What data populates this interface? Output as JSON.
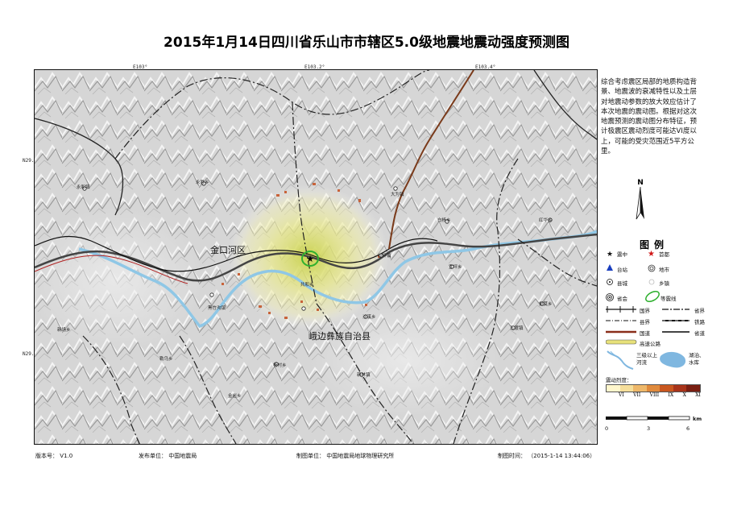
{
  "title": "2015年1月14日四川省乐山市市辖区5.0级地震地震动强度预测图",
  "grid": {
    "longitudes": [
      "E103°",
      "E103.2°",
      "E103.4°"
    ],
    "latitudes": [
      "N29.4°",
      "N29.2°"
    ]
  },
  "places": [
    {
      "name": "金口河区",
      "big": true
    },
    {
      "name": "峨边彝族自治县",
      "big": true
    },
    {
      "name": "永和镇"
    },
    {
      "name": "永胜乡"
    },
    {
      "name": "大为镇"
    },
    {
      "name": "沙坪镇"
    },
    {
      "name": "共和乡"
    },
    {
      "name": "沙溪乡"
    },
    {
      "name": "宜坪乡"
    },
    {
      "name": "红华乡"
    },
    {
      "name": "黑竹沟镇"
    },
    {
      "name": "杨村乡"
    },
    {
      "name": "新林镇"
    },
    {
      "name": "金岩乡"
    },
    {
      "name": "勒乌乡"
    },
    {
      "name": "五渡镇"
    },
    {
      "name": "新场乡"
    },
    {
      "name": "觉莫乡"
    },
    {
      "name": "白杨乡"
    }
  ],
  "description": "综合考虑震区局部的地质构造背景、地震波的衰减特性以及土层对地震动参数的放大效应估计了本次地震的震动图。根据对这次地震预测的震动图分布特征，预计极震区震动烈度可能达VI度以上，可能的受灾范围近5平方公里。",
  "compass_label": "N",
  "legend": {
    "title": "图例",
    "items": [
      {
        "label": "震中",
        "icon": "epicenter-black-star-icon"
      },
      {
        "label": "首都",
        "icon": "capital-red-star-icon"
      },
      {
        "label": "台站",
        "icon": "station-triangle-icon"
      },
      {
        "label": "地市",
        "icon": "city-double-circle-icon"
      },
      {
        "label": "县城",
        "icon": "county-dot-circle-icon"
      },
      {
        "label": "乡镇",
        "icon": "town-circle-icon"
      },
      {
        "label": "省会",
        "icon": "provincial-capital-icon"
      },
      {
        "label": "等震线",
        "icon": "isoseismal-ellipse-icon"
      },
      {
        "label": "国界",
        "icon": "national-border-line-icon"
      },
      {
        "label": "省界",
        "icon": "provincial-border-line-icon"
      },
      {
        "label": "县界",
        "icon": "county-border-line-icon"
      },
      {
        "label": "铁路",
        "icon": "railway-line-icon"
      },
      {
        "label": "国道",
        "icon": "national-road-line-icon"
      },
      {
        "label": "省道",
        "icon": "provincial-road-line-icon"
      },
      {
        "label": "高速公路",
        "icon": "expressway-line-icon"
      },
      {
        "label": "三级以上河流",
        "icon": "river-icon"
      },
      {
        "label": "湖泊、水库",
        "icon": "lake-icon"
      }
    ],
    "intensity_title": "震动烈度：",
    "intensity_levels": [
      "VI",
      "VII",
      "VIII",
      "IX",
      "X",
      "XI"
    ],
    "intensity_colors": [
      "#fff6cc",
      "#f5de9a",
      "#eeb86a",
      "#e08a3c",
      "#c9571f",
      "#a8341a",
      "#7a1f12"
    ],
    "scale_labels": [
      "0",
      "3",
      "6"
    ],
    "scale_unit": "km"
  },
  "footer": {
    "version": "版本号： V1.0",
    "publisher": "发布单位： 中国地震局",
    "producer": "制图单位： 中国地震局地球物理研究所",
    "time": "制图时间： （2015-1-14 13:44:06）"
  }
}
